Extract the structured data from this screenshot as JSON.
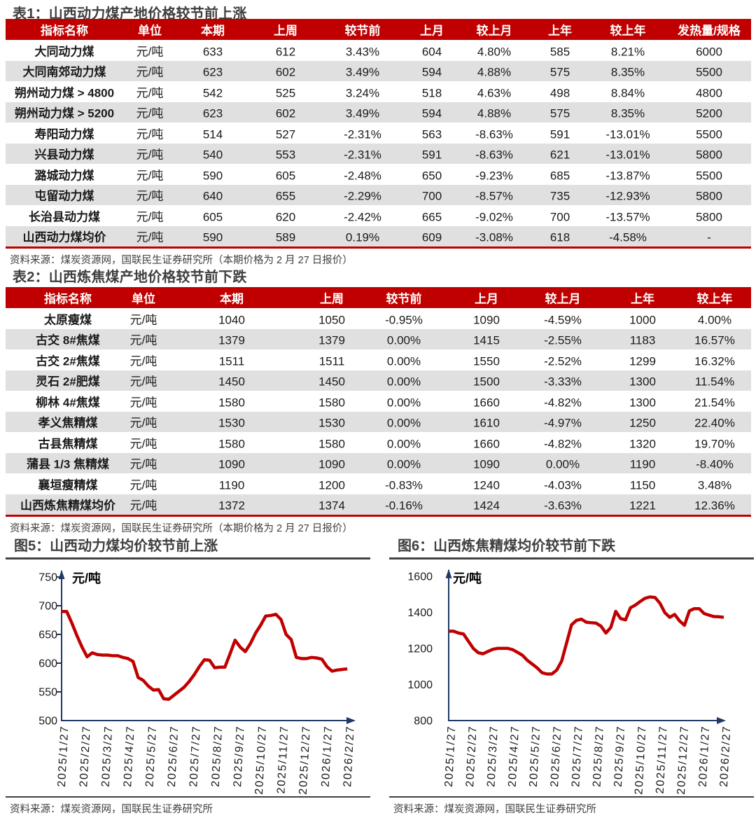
{
  "colors": {
    "accent_red": "#c00000",
    "axis_navy": "#1f3864",
    "title_gray": "#3f3f3f",
    "stripe_gray": "#e0e0e0",
    "text_dark": "#1a1a1a"
  },
  "table1": {
    "title": "表1：山西动力煤产地价格较节前上涨",
    "columns": [
      "指标名称",
      "单位",
      "本期",
      "上周",
      "较节前",
      "上月",
      "较上月",
      "上年",
      "较上年",
      "发热量/规格"
    ],
    "rows": [
      [
        "大同动力煤",
        "元/吨",
        "633",
        "612",
        "3.43%",
        "604",
        "4.80%",
        "585",
        "8.21%",
        "6000"
      ],
      [
        "大同南郊动力煤",
        "元/吨",
        "623",
        "602",
        "3.49%",
        "594",
        "4.88%",
        "575",
        "8.35%",
        "5500"
      ],
      [
        "朔州动力煤 > 4800",
        "元/吨",
        "542",
        "525",
        "3.24%",
        "518",
        "4.63%",
        "498",
        "8.84%",
        "4800"
      ],
      [
        "朔州动力煤 > 5200",
        "元/吨",
        "623",
        "602",
        "3.49%",
        "594",
        "4.88%",
        "575",
        "8.35%",
        "5200"
      ],
      [
        "寿阳动力煤",
        "元/吨",
        "514",
        "527",
        "-2.31%",
        "563",
        "-8.63%",
        "591",
        "-13.01%",
        "5500"
      ],
      [
        "兴县动力煤",
        "元/吨",
        "540",
        "553",
        "-2.31%",
        "591",
        "-8.63%",
        "621",
        "-13.01%",
        "5800"
      ],
      [
        "潞城动力煤",
        "元/吨",
        "590",
        "605",
        "-2.48%",
        "650",
        "-9.23%",
        "685",
        "-13.87%",
        "5500"
      ],
      [
        "屯留动力煤",
        "元/吨",
        "640",
        "655",
        "-2.29%",
        "700",
        "-8.57%",
        "735",
        "-12.93%",
        "5800"
      ],
      [
        "长治县动力煤",
        "元/吨",
        "605",
        "620",
        "-2.42%",
        "665",
        "-9.02%",
        "700",
        "-13.57%",
        "5800"
      ],
      [
        "山西动力煤均价",
        "元/吨",
        "590",
        "589",
        "0.19%",
        "609",
        "-3.08%",
        "618",
        "-4.58%",
        "-"
      ]
    ],
    "source": "资料来源：煤炭资源网，国联民生证券研究所（本期价格为 2 月 27 日报价）"
  },
  "table2": {
    "title": "表2：山西炼焦煤产地价格较节前下跌",
    "columns": [
      "指标名称",
      "单位",
      "本期",
      "上周",
      "较节前",
      "上月",
      "较上月",
      "上年",
      "较上年"
    ],
    "rows": [
      [
        "太原瘦煤",
        "元/吨",
        "1040",
        "1050",
        "-0.95%",
        "1090",
        "-4.59%",
        "1000",
        "4.00%"
      ],
      [
        "古交 8#焦煤",
        "元/吨",
        "1379",
        "1379",
        "0.00%",
        "1415",
        "-2.55%",
        "1183",
        "16.57%"
      ],
      [
        "古交 2#焦煤",
        "元/吨",
        "1511",
        "1511",
        "0.00%",
        "1550",
        "-2.52%",
        "1299",
        "16.32%"
      ],
      [
        "灵石 2#肥煤",
        "元/吨",
        "1450",
        "1450",
        "0.00%",
        "1500",
        "-3.33%",
        "1300",
        "11.54%"
      ],
      [
        "柳林 4#焦煤",
        "元/吨",
        "1580",
        "1580",
        "0.00%",
        "1660",
        "-4.82%",
        "1300",
        "21.54%"
      ],
      [
        "孝义焦精煤",
        "元/吨",
        "1530",
        "1530",
        "0.00%",
        "1610",
        "-4.97%",
        "1250",
        "22.40%"
      ],
      [
        "古县焦精煤",
        "元/吨",
        "1580",
        "1580",
        "0.00%",
        "1660",
        "-4.82%",
        "1320",
        "19.70%"
      ],
      [
        "蒲县 1/3 焦精煤",
        "元/吨",
        "1090",
        "1090",
        "0.00%",
        "1090",
        "0.00%",
        "1190",
        "-8.40%"
      ],
      [
        "襄垣瘦精煤",
        "元/吨",
        "1190",
        "1200",
        "-0.83%",
        "1240",
        "-4.03%",
        "1150",
        "3.48%"
      ],
      [
        "山西炼焦精煤均价",
        "元/吨",
        "1372",
        "1374",
        "-0.16%",
        "1424",
        "-3.63%",
        "1221",
        "12.36%"
      ]
    ],
    "source": "资料来源：煤炭资源网，国联民生证券研究所（本期价格为 2 月 27 日报价）"
  },
  "figures": [
    {
      "title": "图5：山西动力煤均价较节前上涨",
      "source": "资料来源：煤炭资源网，国联民生证券研究所"
    },
    {
      "title": "图6：山西炼焦精煤均价较节前下跌",
      "source": "资料来源：煤炭资源网，国联民生证券研究所"
    }
  ],
  "chart_data": [
    {
      "type": "line",
      "title": "图5：山西动力煤均价较节前上涨",
      "ylabel": "元/吨",
      "xlabel": "",
      "ylim": [
        500,
        750
      ],
      "yticks": [
        500,
        550,
        600,
        650,
        700,
        750
      ],
      "x_tick_labels": [
        "2025/1/27",
        "2025/2/27",
        "2025/3/27",
        "2025/4/27",
        "2025/5/27",
        "2025/6/27",
        "2025/7/27",
        "2025/8/27",
        "2025/9/27",
        "2025/10/27",
        "2025/11/27",
        "2025/12/27",
        "2026/1/27",
        "2026/2/27"
      ],
      "grid": false,
      "legend": "none",
      "line_color": "#c00000",
      "series": [
        {
          "name": "山西动力煤均价（元/吨）",
          "values": [
            690,
            690,
            670,
            648,
            628,
            611,
            618,
            615,
            614,
            614,
            613,
            613,
            610,
            608,
            603,
            575,
            570,
            560,
            553,
            554,
            538,
            537,
            544,
            551,
            558,
            568,
            580,
            594,
            606,
            605,
            592,
            593,
            593,
            616,
            640,
            628,
            620,
            634,
            652,
            666,
            682,
            683,
            685,
            676,
            650,
            641,
            610,
            608,
            608,
            610,
            609,
            607,
            594,
            586,
            588,
            589,
            590
          ]
        }
      ]
    },
    {
      "type": "line",
      "title": "图6：山西炼焦精煤均价较节前下跌",
      "ylabel": "元/吨",
      "xlabel": "",
      "ylim": [
        800,
        1600
      ],
      "yticks": [
        800,
        1000,
        1200,
        1400,
        1600
      ],
      "x_tick_labels": [
        "2025/1/27",
        "2025/2/27",
        "2025/3/27",
        "2025/4/27",
        "2025/5/27",
        "2025/6/27",
        "2025/7/27",
        "2025/8/27",
        "2025/9/27",
        "2025/10/27",
        "2025/11/27",
        "2025/12/27",
        "2026/1/27",
        "2026/2/27"
      ],
      "grid": false,
      "legend": "none",
      "line_color": "#c00000",
      "series": [
        {
          "name": "山西炼焦精煤均价（元/吨）",
          "values": [
            1295,
            1295,
            1285,
            1280,
            1240,
            1200,
            1176,
            1170,
            1183,
            1195,
            1200,
            1200,
            1200,
            1193,
            1178,
            1162,
            1134,
            1113,
            1092,
            1065,
            1058,
            1058,
            1080,
            1130,
            1230,
            1330,
            1355,
            1362,
            1345,
            1342,
            1340,
            1323,
            1285,
            1316,
            1405,
            1365,
            1358,
            1425,
            1440,
            1460,
            1478,
            1485,
            1482,
            1450,
            1398,
            1372,
            1388,
            1352,
            1328,
            1408,
            1420,
            1420,
            1393,
            1384,
            1376,
            1375,
            1372
          ]
        }
      ]
    }
  ]
}
